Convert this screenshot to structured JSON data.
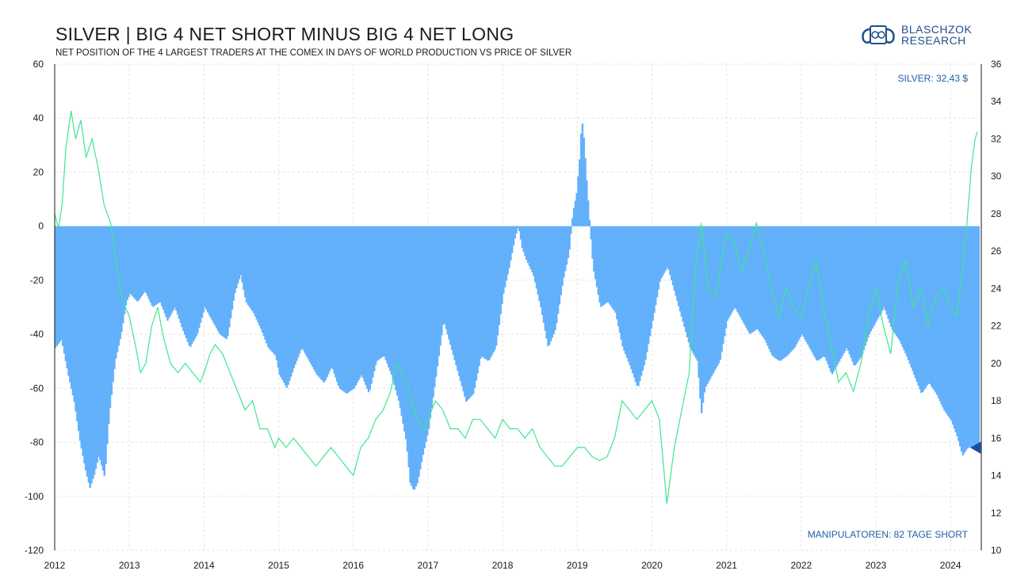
{
  "header": {
    "title": "SILVER | BIG 4 NET SHORT MINUS BIG 4 NET LONG",
    "subtitle": "NET POSITION OF THE 4 LARGEST TRADERS AT THE COMEX IN DAYS OF WORLD PRODUCTION VS PRICE OF SILVER"
  },
  "logo": {
    "line1": "BLASCHZOK",
    "line2": "RESEARCH",
    "icon": "bull-bear-emblem-icon"
  },
  "colors": {
    "bars": "#63b0fb",
    "line": "#3de68f",
    "annotation": "#1f5fa8",
    "marker": "#1f4ea0",
    "grid": "#e3e3e3"
  },
  "chart_data": {
    "type": "bar",
    "title": "SILVER | BIG 4 NET SHORT MINUS BIG 4 NET LONG",
    "x_ticks": [
      "2012",
      "2013",
      "2014",
      "2015",
      "2016",
      "2017",
      "2018",
      "2019",
      "2020",
      "2021",
      "2022",
      "2023",
      "2024"
    ],
    "xlim": [
      2012.0,
      2024.37
    ],
    "ylim_left": [
      -120,
      60
    ],
    "ylim_right": [
      10,
      36
    ],
    "y_ticks_left": [
      -120,
      -100,
      -80,
      -60,
      -40,
      -20,
      0,
      20,
      40,
      60
    ],
    "y_ticks_right": [
      10,
      12,
      14,
      16,
      18,
      20,
      22,
      24,
      26,
      28,
      30,
      32,
      34,
      36
    ],
    "grid": true,
    "series": [
      {
        "name": "Big 4 net position (days of world production)",
        "kind": "bar",
        "axis": "left",
        "points": [
          [
            2012.0,
            -45
          ],
          [
            2012.08,
            -42
          ],
          [
            2012.17,
            -55
          ],
          [
            2012.25,
            -65
          ],
          [
            2012.33,
            -80
          ],
          [
            2012.4,
            -90
          ],
          [
            2012.46,
            -97
          ],
          [
            2012.52,
            -92
          ],
          [
            2012.58,
            -85
          ],
          [
            2012.66,
            -93
          ],
          [
            2012.72,
            -70
          ],
          [
            2012.8,
            -50
          ],
          [
            2012.88,
            -40
          ],
          [
            2012.95,
            -28
          ],
          [
            2013.0,
            -25
          ],
          [
            2013.1,
            -28
          ],
          [
            2013.2,
            -24
          ],
          [
            2013.3,
            -30
          ],
          [
            2013.4,
            -28
          ],
          [
            2013.5,
            -35
          ],
          [
            2013.6,
            -30
          ],
          [
            2013.7,
            -38
          ],
          [
            2013.8,
            -45
          ],
          [
            2013.9,
            -40
          ],
          [
            2014.0,
            -30
          ],
          [
            2014.1,
            -35
          ],
          [
            2014.2,
            -40
          ],
          [
            2014.3,
            -42
          ],
          [
            2014.4,
            -25
          ],
          [
            2014.48,
            -18
          ],
          [
            2014.55,
            -28
          ],
          [
            2014.65,
            -32
          ],
          [
            2014.75,
            -38
          ],
          [
            2014.85,
            -45
          ],
          [
            2014.95,
            -48
          ],
          [
            2015.0,
            -55
          ],
          [
            2015.1,
            -60
          ],
          [
            2015.2,
            -52
          ],
          [
            2015.3,
            -45
          ],
          [
            2015.4,
            -50
          ],
          [
            2015.5,
            -55
          ],
          [
            2015.6,
            -58
          ],
          [
            2015.7,
            -52
          ],
          [
            2015.8,
            -60
          ],
          [
            2015.9,
            -62
          ],
          [
            2016.0,
            -60
          ],
          [
            2016.1,
            -55
          ],
          [
            2016.2,
            -62
          ],
          [
            2016.3,
            -50
          ],
          [
            2016.4,
            -48
          ],
          [
            2016.5,
            -55
          ],
          [
            2016.6,
            -65
          ],
          [
            2016.7,
            -80
          ],
          [
            2016.75,
            -95
          ],
          [
            2016.8,
            -98
          ],
          [
            2016.85,
            -95
          ],
          [
            2016.92,
            -85
          ],
          [
            2017.0,
            -75
          ],
          [
            2017.1,
            -55
          ],
          [
            2017.2,
            -35
          ],
          [
            2017.3,
            -45
          ],
          [
            2017.4,
            -55
          ],
          [
            2017.5,
            -65
          ],
          [
            2017.6,
            -62
          ],
          [
            2017.7,
            -48
          ],
          [
            2017.8,
            -50
          ],
          [
            2017.9,
            -45
          ],
          [
            2018.0,
            -25
          ],
          [
            2018.08,
            -15
          ],
          [
            2018.15,
            -5
          ],
          [
            2018.2,
            0
          ],
          [
            2018.25,
            -8
          ],
          [
            2018.3,
            -12
          ],
          [
            2018.4,
            -18
          ],
          [
            2018.5,
            -30
          ],
          [
            2018.6,
            -45
          ],
          [
            2018.7,
            -38
          ],
          [
            2018.8,
            -20
          ],
          [
            2018.88,
            -10
          ],
          [
            2018.93,
            5
          ],
          [
            2018.98,
            12
          ],
          [
            2019.02,
            25
          ],
          [
            2019.05,
            40
          ],
          [
            2019.08,
            32
          ],
          [
            2019.12,
            15
          ],
          [
            2019.2,
            -15
          ],
          [
            2019.3,
            -30
          ],
          [
            2019.4,
            -28
          ],
          [
            2019.5,
            -32
          ],
          [
            2019.6,
            -45
          ],
          [
            2019.7,
            -52
          ],
          [
            2019.8,
            -60
          ],
          [
            2019.9,
            -50
          ],
          [
            2020.0,
            -35
          ],
          [
            2020.1,
            -20
          ],
          [
            2020.2,
            -15
          ],
          [
            2020.3,
            -25
          ],
          [
            2020.4,
            -35
          ],
          [
            2020.5,
            -45
          ],
          [
            2020.6,
            -50
          ],
          [
            2020.65,
            -70
          ],
          [
            2020.7,
            -60
          ],
          [
            2020.8,
            -55
          ],
          [
            2020.9,
            -50
          ],
          [
            2021.0,
            -35
          ],
          [
            2021.1,
            -30
          ],
          [
            2021.2,
            -35
          ],
          [
            2021.3,
            -40
          ],
          [
            2021.4,
            -38
          ],
          [
            2021.5,
            -42
          ],
          [
            2021.6,
            -48
          ],
          [
            2021.7,
            -50
          ],
          [
            2021.8,
            -48
          ],
          [
            2021.9,
            -45
          ],
          [
            2022.0,
            -40
          ],
          [
            2022.1,
            -45
          ],
          [
            2022.2,
            -50
          ],
          [
            2022.3,
            -48
          ],
          [
            2022.4,
            -55
          ],
          [
            2022.5,
            -50
          ],
          [
            2022.6,
            -45
          ],
          [
            2022.7,
            -52
          ],
          [
            2022.8,
            -48
          ],
          [
            2022.9,
            -40
          ],
          [
            2023.0,
            -35
          ],
          [
            2023.1,
            -30
          ],
          [
            2023.2,
            -38
          ],
          [
            2023.3,
            -42
          ],
          [
            2023.4,
            -48
          ],
          [
            2023.5,
            -55
          ],
          [
            2023.6,
            -62
          ],
          [
            2023.7,
            -58
          ],
          [
            2023.8,
            -62
          ],
          [
            2023.9,
            -68
          ],
          [
            2024.0,
            -72
          ],
          [
            2024.08,
            -78
          ],
          [
            2024.15,
            -85
          ],
          [
            2024.22,
            -82
          ],
          [
            2024.3,
            -82
          ],
          [
            2024.36,
            -82
          ]
        ]
      },
      {
        "name": "Silver price ($)",
        "kind": "line",
        "axis": "right",
        "points": [
          [
            2012.0,
            28.0
          ],
          [
            2012.05,
            27.2
          ],
          [
            2012.1,
            28.5
          ],
          [
            2012.15,
            31.5
          ],
          [
            2012.22,
            33.5
          ],
          [
            2012.28,
            32.0
          ],
          [
            2012.35,
            33.0
          ],
          [
            2012.42,
            31.0
          ],
          [
            2012.5,
            32.0
          ],
          [
            2012.58,
            30.5
          ],
          [
            2012.66,
            28.5
          ],
          [
            2012.75,
            27.5
          ],
          [
            2012.82,
            25.5
          ],
          [
            2012.9,
            23.5
          ],
          [
            2013.0,
            22.5
          ],
          [
            2013.08,
            21.0
          ],
          [
            2013.15,
            19.5
          ],
          [
            2013.22,
            20.0
          ],
          [
            2013.3,
            22.0
          ],
          [
            2013.38,
            23.0
          ],
          [
            2013.45,
            21.5
          ],
          [
            2013.55,
            20.0
          ],
          [
            2013.65,
            19.5
          ],
          [
            2013.75,
            20.0
          ],
          [
            2013.85,
            19.5
          ],
          [
            2013.95,
            19.0
          ],
          [
            2014.0,
            19.5
          ],
          [
            2014.08,
            20.5
          ],
          [
            2014.15,
            21.0
          ],
          [
            2014.25,
            20.5
          ],
          [
            2014.35,
            19.5
          ],
          [
            2014.45,
            18.5
          ],
          [
            2014.55,
            17.5
          ],
          [
            2014.65,
            18.0
          ],
          [
            2014.75,
            16.5
          ],
          [
            2014.85,
            16.5
          ],
          [
            2014.95,
            15.5
          ],
          [
            2015.0,
            16.0
          ],
          [
            2015.1,
            15.5
          ],
          [
            2015.2,
            16.0
          ],
          [
            2015.3,
            15.5
          ],
          [
            2015.4,
            15.0
          ],
          [
            2015.5,
            14.5
          ],
          [
            2015.6,
            15.0
          ],
          [
            2015.7,
            15.5
          ],
          [
            2015.8,
            15.0
          ],
          [
            2015.9,
            14.5
          ],
          [
            2016.0,
            14.0
          ],
          [
            2016.1,
            15.5
          ],
          [
            2016.2,
            16.0
          ],
          [
            2016.3,
            17.0
          ],
          [
            2016.4,
            17.5
          ],
          [
            2016.5,
            18.5
          ],
          [
            2016.58,
            20.0
          ],
          [
            2016.66,
            19.5
          ],
          [
            2016.75,
            18.5
          ],
          [
            2016.85,
            17.0
          ],
          [
            2016.95,
            16.5
          ],
          [
            2017.0,
            17.0
          ],
          [
            2017.1,
            18.0
          ],
          [
            2017.2,
            17.5
          ],
          [
            2017.3,
            16.5
          ],
          [
            2017.4,
            16.5
          ],
          [
            2017.5,
            16.0
          ],
          [
            2017.6,
            17.0
          ],
          [
            2017.7,
            17.0
          ],
          [
            2017.8,
            16.5
          ],
          [
            2017.9,
            16.0
          ],
          [
            2018.0,
            17.0
          ],
          [
            2018.1,
            16.5
          ],
          [
            2018.2,
            16.5
          ],
          [
            2018.3,
            16.0
          ],
          [
            2018.4,
            16.5
          ],
          [
            2018.5,
            15.5
          ],
          [
            2018.6,
            15.0
          ],
          [
            2018.7,
            14.5
          ],
          [
            2018.8,
            14.5
          ],
          [
            2018.9,
            15.0
          ],
          [
            2019.0,
            15.5
          ],
          [
            2019.1,
            15.5
          ],
          [
            2019.2,
            15.0
          ],
          [
            2019.3,
            14.8
          ],
          [
            2019.4,
            15.0
          ],
          [
            2019.5,
            16.0
          ],
          [
            2019.6,
            18.0
          ],
          [
            2019.7,
            17.5
          ],
          [
            2019.8,
            17.0
          ],
          [
            2019.9,
            17.5
          ],
          [
            2020.0,
            18.0
          ],
          [
            2020.1,
            17.0
          ],
          [
            2020.2,
            12.5
          ],
          [
            2020.3,
            15.5
          ],
          [
            2020.4,
            17.5
          ],
          [
            2020.5,
            19.5
          ],
          [
            2020.58,
            25.0
          ],
          [
            2020.66,
            27.5
          ],
          [
            2020.75,
            24.0
          ],
          [
            2020.85,
            23.5
          ],
          [
            2020.95,
            26.0
          ],
          [
            2021.0,
            27.0
          ],
          [
            2021.1,
            26.5
          ],
          [
            2021.2,
            25.0
          ],
          [
            2021.3,
            26.0
          ],
          [
            2021.4,
            27.5
          ],
          [
            2021.5,
            26.0
          ],
          [
            2021.6,
            24.0
          ],
          [
            2021.7,
            22.5
          ],
          [
            2021.8,
            24.0
          ],
          [
            2021.9,
            23.0
          ],
          [
            2022.0,
            22.5
          ],
          [
            2022.1,
            24.0
          ],
          [
            2022.2,
            25.5
          ],
          [
            2022.3,
            23.0
          ],
          [
            2022.4,
            21.0
          ],
          [
            2022.5,
            19.0
          ],
          [
            2022.6,
            19.5
          ],
          [
            2022.7,
            18.5
          ],
          [
            2022.8,
            20.0
          ],
          [
            2022.9,
            22.5
          ],
          [
            2023.0,
            24.0
          ],
          [
            2023.1,
            22.0
          ],
          [
            2023.2,
            20.5
          ],
          [
            2023.3,
            24.5
          ],
          [
            2023.4,
            25.5
          ],
          [
            2023.5,
            23.0
          ],
          [
            2023.6,
            24.0
          ],
          [
            2023.7,
            22.0
          ],
          [
            2023.8,
            23.5
          ],
          [
            2023.9,
            24.0
          ],
          [
            2024.0,
            23.0
          ],
          [
            2024.08,
            22.5
          ],
          [
            2024.15,
            24.5
          ],
          [
            2024.22,
            27.5
          ],
          [
            2024.28,
            30.5
          ],
          [
            2024.33,
            32.0
          ],
          [
            2024.36,
            32.4
          ]
        ]
      }
    ],
    "annotations": [
      {
        "text": "SILVER: 32,43 $",
        "position": "top-right"
      },
      {
        "text": "MANIPULATOREN: 82 TAGE SHORT",
        "position": "bottom-right"
      }
    ],
    "marker": {
      "label": "latest net position",
      "value": -82
    }
  }
}
